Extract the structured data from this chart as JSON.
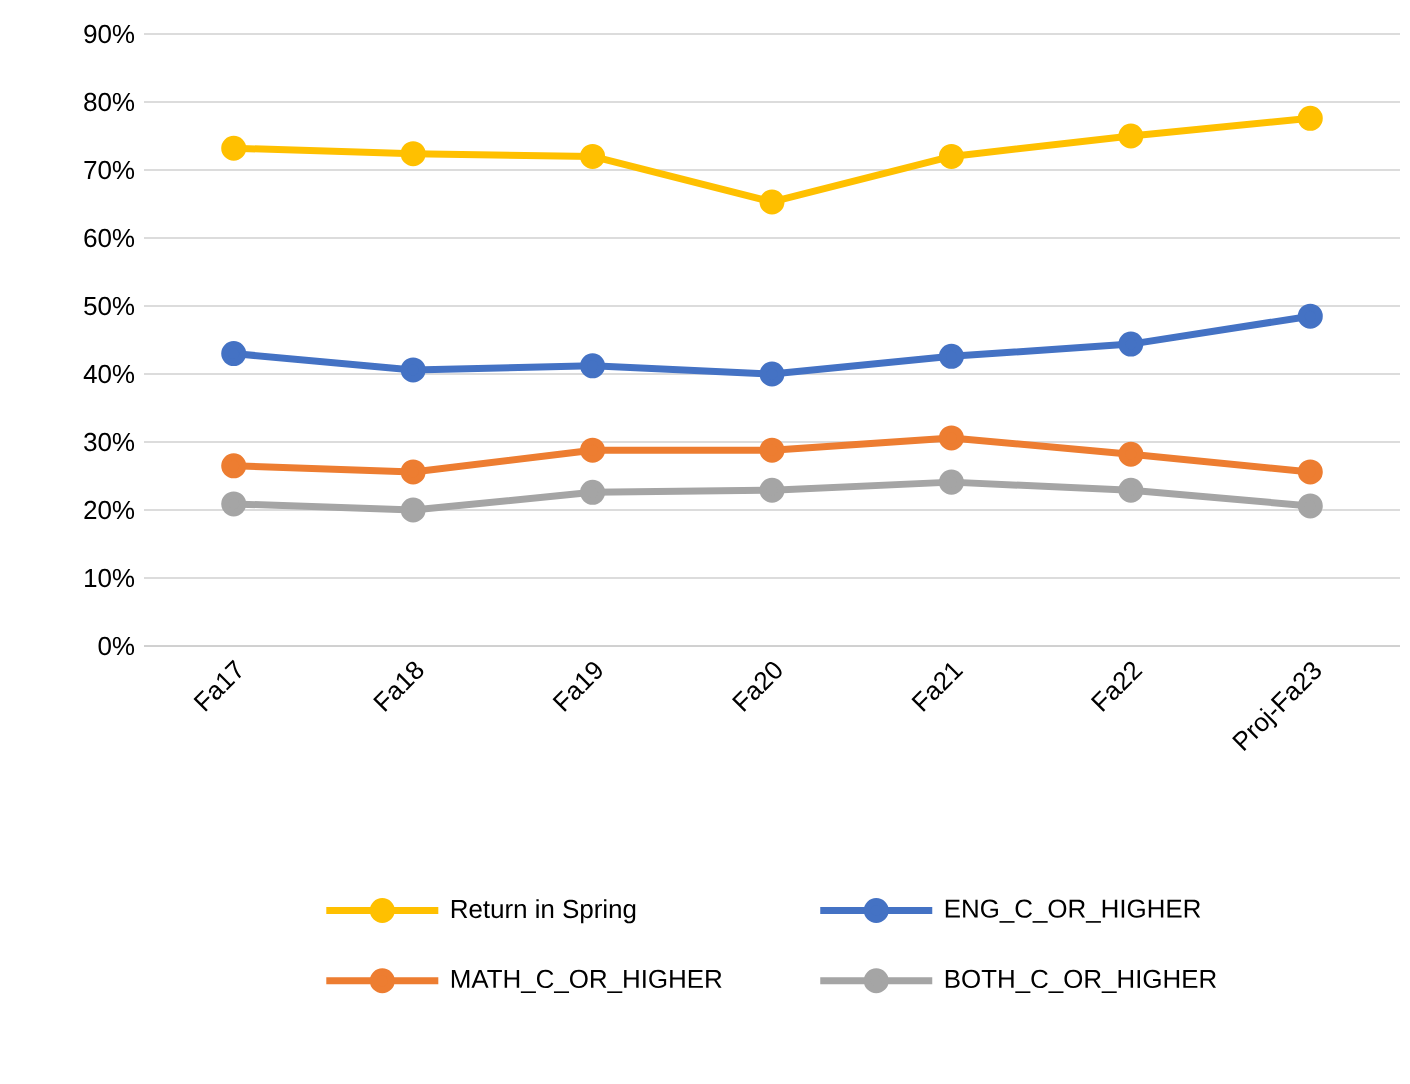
{
  "chart_data": {
    "type": "line",
    "categories": [
      "Fa17",
      "Fa18",
      "Fa19",
      "Fa20",
      "Fa21",
      "Fa22",
      "Proj-Fa23"
    ],
    "series": [
      {
        "name": "Return in Spring",
        "color": "#ffc000",
        "values": [
          73.2,
          72.4,
          72,
          65.3,
          72,
          75,
          77.6
        ]
      },
      {
        "name": "ENG_C_OR_HIGHER",
        "color": "#4472c4",
        "values": [
          43,
          40.6,
          41.2,
          40,
          42.6,
          44.4,
          48.5
        ]
      },
      {
        "name": "MATH_C_OR_HIGHER",
        "color": "#ed7d31",
        "values": [
          26.5,
          25.6,
          28.8,
          28.8,
          30.6,
          28.2,
          25.6
        ]
      },
      {
        "name": "BOTH_C_OR_HIGHER",
        "color": "#a5a5a5",
        "values": [
          20.9,
          20,
          22.6,
          22.9,
          24.1,
          22.9,
          20.6
        ]
      }
    ],
    "ylim": [
      0,
      90
    ],
    "yticks": [
      {
        "value": 0,
        "label": "0%"
      },
      {
        "value": 10,
        "label": "10%"
      },
      {
        "value": 20,
        "label": "20%"
      },
      {
        "value": 30,
        "label": "30%"
      },
      {
        "value": 40,
        "label": "40%"
      },
      {
        "value": 50,
        "label": "50%"
      },
      {
        "value": 60,
        "label": "60%"
      },
      {
        "value": 70,
        "label": "70%"
      },
      {
        "value": 80,
        "label": "80%"
      },
      {
        "value": 90,
        "label": "90%"
      }
    ],
    "grid": "y",
    "legend": "bottom",
    "marker": "circle",
    "line_style": "solid"
  }
}
